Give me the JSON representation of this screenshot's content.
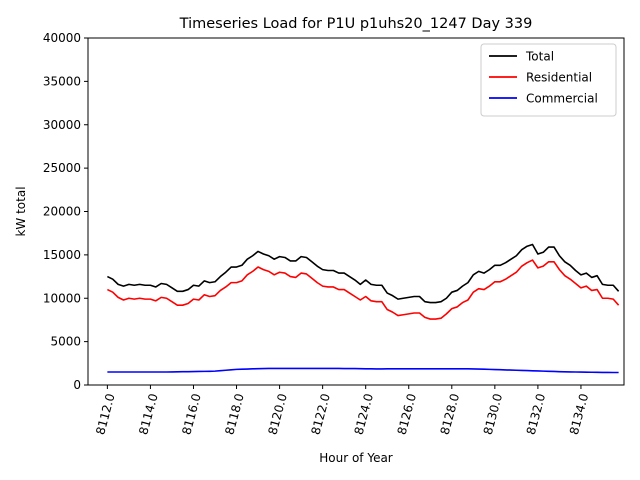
{
  "chart_data": {
    "type": "line",
    "title": "Timeseries Load for P1U p1uhs20_1247  Day 339",
    "xlabel": "Hour of Year",
    "ylabel": "kW total",
    "xlim": [
      8111.1,
      8136.0
    ],
    "ylim": [
      0,
      40000
    ],
    "x_ticks": [
      8112,
      8114,
      8116,
      8118,
      8120,
      8122,
      8124,
      8126,
      8128,
      8130,
      8132,
      8134
    ],
    "x_tick_labels": [
      "8112.0",
      "8114.0",
      "8116.0",
      "8118.0",
      "8120.0",
      "8122.0",
      "8124.0",
      "8126.0",
      "8128.0",
      "8130.0",
      "8132.0",
      "8134.0"
    ],
    "y_ticks": [
      0,
      5000,
      10000,
      15000,
      20000,
      25000,
      30000,
      35000,
      40000
    ],
    "y_tick_labels": [
      "0",
      "5000",
      "10000",
      "15000",
      "20000",
      "25000",
      "30000",
      "35000",
      "40000"
    ],
    "grid": false,
    "legend": "top-right",
    "x_start": 8112,
    "x_step": 0.25,
    "series": [
      {
        "name": "Total",
        "color": "#000000",
        "values": [
          12500,
          12200,
          11600,
          11400,
          11600,
          11500,
          11600,
          11500,
          11500,
          11300,
          11700,
          11600,
          11200,
          10800,
          10800,
          11000,
          11500,
          11400,
          12000,
          11800,
          11900,
          12500,
          13000,
          13600,
          13600,
          13800,
          14500,
          14900,
          15400,
          15100,
          14900,
          14500,
          14800,
          14700,
          14300,
          14300,
          14800,
          14700,
          14200,
          13700,
          13300,
          13200,
          13200,
          12900,
          12900,
          12500,
          12100,
          11600,
          12100,
          11600,
          11500,
          11500,
          10600,
          10300,
          9900,
          10000,
          10100,
          10200,
          10200,
          9600,
          9500,
          9500,
          9600,
          10000,
          10700,
          10900,
          11400,
          11800,
          12700,
          13100,
          12900,
          13300,
          13800,
          13800,
          14100,
          14500,
          14900,
          15600,
          16000,
          16200,
          15100,
          15300,
          15900,
          15900,
          14900,
          14200,
          13800,
          13200,
          12700,
          12900,
          12400,
          12600,
          11600,
          11500,
          11500,
          10800
        ]
      },
      {
        "name": "Residential",
        "color": "#ff0000",
        "values": [
          11000,
          10700,
          10100,
          9800,
          10000,
          9900,
          10000,
          9900,
          9900,
          9700,
          10100,
          10000,
          9600,
          9200,
          9200,
          9400,
          9900,
          9800,
          10400,
          10200,
          10300,
          10900,
          11300,
          11800,
          11800,
          12000,
          12700,
          13100,
          13600,
          13300,
          13100,
          12700,
          13000,
          12900,
          12500,
          12400,
          12900,
          12800,
          12300,
          11800,
          11400,
          11300,
          11300,
          11000,
          11000,
          10600,
          10200,
          9800,
          10200,
          9700,
          9600,
          9600,
          8700,
          8400,
          8000,
          8100,
          8200,
          8300,
          8300,
          7800,
          7600,
          7600,
          7700,
          8200,
          8800,
          9000,
          9500,
          9800,
          10700,
          11100,
          11000,
          11400,
          11900,
          11900,
          12200,
          12600,
          13000,
          13700,
          14100,
          14400,
          13500,
          13700,
          14200,
          14200,
          13300,
          12600,
          12200,
          11700,
          11200,
          11400,
          10900,
          11000,
          10000,
          10000,
          9900,
          9200
        ]
      },
      {
        "name": "Commercial",
        "color": "#0000ff",
        "values": [
          1500,
          1500,
          1500,
          1500,
          1500,
          1500,
          1500,
          1500,
          1500,
          1500,
          1500,
          1500,
          1510,
          1520,
          1530,
          1540,
          1550,
          1560,
          1570,
          1580,
          1600,
          1650,
          1700,
          1750,
          1800,
          1820,
          1840,
          1860,
          1880,
          1900,
          1910,
          1910,
          1910,
          1910,
          1910,
          1910,
          1910,
          1910,
          1910,
          1910,
          1910,
          1910,
          1910,
          1910,
          1900,
          1900,
          1890,
          1880,
          1870,
          1860,
          1850,
          1850,
          1860,
          1870,
          1870,
          1870,
          1870,
          1870,
          1860,
          1860,
          1860,
          1860,
          1860,
          1860,
          1860,
          1860,
          1860,
          1860,
          1850,
          1840,
          1820,
          1800,
          1780,
          1760,
          1740,
          1720,
          1700,
          1680,
          1660,
          1640,
          1620,
          1600,
          1580,
          1560,
          1540,
          1520,
          1510,
          1500,
          1490,
          1480,
          1470,
          1460,
          1450,
          1450,
          1440,
          1440
        ]
      }
    ]
  }
}
